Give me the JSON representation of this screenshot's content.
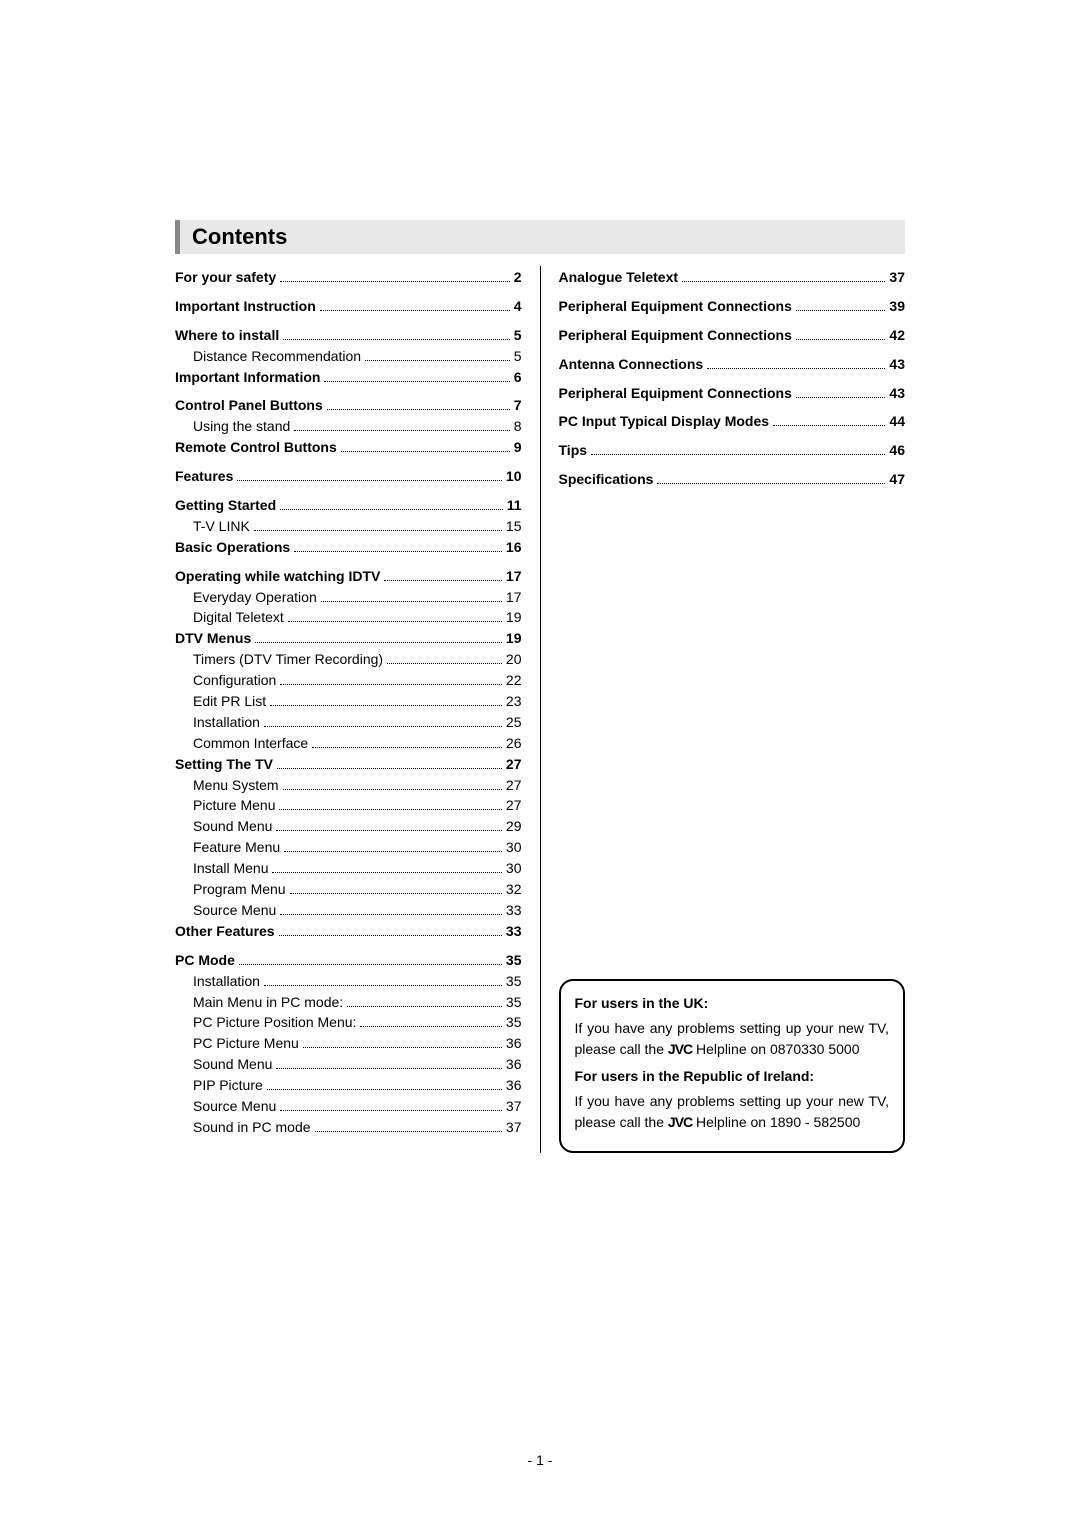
{
  "heading": "Contents",
  "brand": "JVC",
  "page_number": "- 1 -",
  "left": [
    {
      "label": "For your safety",
      "page": "2",
      "bold": true
    },
    {
      "label": "Important Instruction",
      "page": "4",
      "bold": true,
      "gap": true
    },
    {
      "label": "Where to install",
      "page": "5",
      "bold": true,
      "gap": true
    },
    {
      "label": "Distance Recommendation",
      "page": "5",
      "indent": 1
    },
    {
      "label": "Important Information",
      "page": "6",
      "bold": true
    },
    {
      "label": "Control Panel Buttons",
      "page": "7",
      "bold": true,
      "gap": true
    },
    {
      "label": "Using the stand",
      "page": "8",
      "indent": 1
    },
    {
      "label": "Remote Control Buttons",
      "page": "9",
      "bold": true
    },
    {
      "label": "Features",
      "page": "10",
      "bold": true,
      "gap": true
    },
    {
      "label": "Getting Started",
      "page": "11",
      "bold": true,
      "gap": true
    },
    {
      "label": "T-V LINK",
      "page": "15",
      "indent": 1
    },
    {
      "label": "Basic Operations",
      "page": "16",
      "bold": true
    },
    {
      "label": "Operating while watching IDTV",
      "page": "17",
      "bold": true,
      "gap": true
    },
    {
      "label": "Everyday Operation",
      "page": "17",
      "indent": 1
    },
    {
      "label": "Digital Teletext",
      "page": "19",
      "indent": 1
    },
    {
      "label": "DTV Menus",
      "page": "19",
      "bold": true
    },
    {
      "label": "Timers (DTV Timer Recording)",
      "page": "20",
      "indent": 1
    },
    {
      "label": "Configuration",
      "page": "22",
      "indent": 1
    },
    {
      "label": "Edit PR List",
      "page": "23",
      "indent": 1
    },
    {
      "label": "Installation",
      "page": "25",
      "indent": 1
    },
    {
      "label": "Common Interface",
      "page": "26",
      "indent": 1
    },
    {
      "label": "Setting The TV",
      "page": "27",
      "bold": true
    },
    {
      "label": "Menu System",
      "page": "27",
      "indent": 1
    },
    {
      "label": "Picture Menu",
      "page": "27",
      "indent": 1
    },
    {
      "label": "Sound Menu",
      "page": "29",
      "indent": 1
    },
    {
      "label": "Feature Menu",
      "page": "30",
      "indent": 1
    },
    {
      "label": "Install Menu",
      "page": "30",
      "indent": 1
    },
    {
      "label": "Program Menu",
      "page": "32",
      "indent": 1
    },
    {
      "label": "Source Menu",
      "page": "33",
      "indent": 1
    },
    {
      "label": "Other Features",
      "page": "33",
      "bold": true
    },
    {
      "label": "PC Mode",
      "page": "35",
      "bold": true,
      "gap": true
    },
    {
      "label": "Installation",
      "page": "35",
      "indent": 1
    },
    {
      "label": "Main Menu in PC mode:",
      "page": "35",
      "indent": 1
    },
    {
      "label": "PC Picture Position Menu:",
      "page": "35",
      "indent": 1
    },
    {
      "label": "PC Picture Menu",
      "page": "36",
      "indent": 1
    },
    {
      "label": "Sound Menu",
      "page": "36",
      "indent": 1
    },
    {
      "label": "PIP Picture",
      "page": "36",
      "indent": 1
    },
    {
      "label": "Source Menu",
      "page": "37",
      "indent": 1
    },
    {
      "label": "Sound in PC mode",
      "page": "37",
      "indent": 1
    }
  ],
  "right": [
    {
      "label": "Analogue Teletext",
      "page": "37",
      "bold": true
    },
    {
      "label": "Peripheral Equipment Connections",
      "page": "39",
      "bold": true,
      "gap": true
    },
    {
      "label": "Peripheral Equipment Connections",
      "page": "42",
      "bold": true,
      "gap": true
    },
    {
      "label": "Antenna Connections",
      "page": "43",
      "bold": true,
      "gap": true
    },
    {
      "label": "Peripheral Equipment Connections",
      "page": "43",
      "bold": true,
      "gap": true
    },
    {
      "label": "PC Input Typical Display Modes",
      "page": "44",
      "bold": true,
      "gap": true
    },
    {
      "label": "Tips",
      "page": "46",
      "bold": true,
      "gap": true
    },
    {
      "label": "Specifications",
      "page": "47",
      "bold": true,
      "gap": true
    }
  ],
  "note": {
    "uk_title": "For users in the UK:",
    "uk_body_a": "If you have any problems setting up your new TV, please call the ",
    "uk_body_b": " Helpline on 0870330 5000",
    "ie_title": "For users in the Republic of Ireland:",
    "ie_body_a": "If you have any problems setting up your new TV, please call the ",
    "ie_body_b": " Helpline on 1890 - 582500"
  }
}
